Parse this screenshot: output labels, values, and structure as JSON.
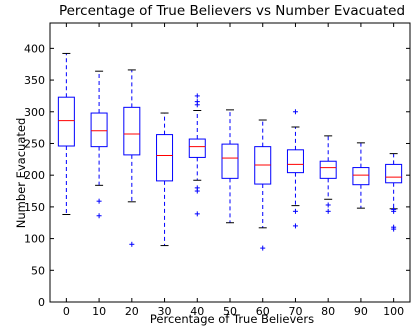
{
  "chart_data": {
    "type": "box",
    "title": "Percentage of True Believers vs Number Evacuated",
    "xlabel": "Percentage of True Believers",
    "ylabel": "Number Evacuated",
    "ylim": [
      0,
      440
    ],
    "yticks": [
      0,
      50,
      100,
      150,
      200,
      250,
      300,
      350,
      400
    ],
    "grid": false,
    "colors": {
      "box": "#0000ff",
      "median": "#ff0000",
      "whisker": "#0000ff",
      "cap": "#000000",
      "flier": "#0000ff"
    },
    "categories": [
      "0",
      "10",
      "20",
      "30",
      "40",
      "50",
      "60",
      "70",
      "80",
      "90",
      "100"
    ],
    "boxes": [
      {
        "label": "0",
        "whislo": 138,
        "q1": 246,
        "med": 286,
        "q3": 323,
        "whishi": 392,
        "fliers": []
      },
      {
        "label": "10",
        "whislo": 184,
        "q1": 245,
        "med": 270,
        "q3": 298,
        "whishi": 364,
        "fliers": [
          159,
          136
        ]
      },
      {
        "label": "20",
        "whislo": 158,
        "q1": 232,
        "med": 265,
        "q3": 307,
        "whishi": 366,
        "fliers": [
          91
        ]
      },
      {
        "label": "30",
        "whislo": 89,
        "q1": 191,
        "med": 231,
        "q3": 264,
        "whishi": 298,
        "fliers": []
      },
      {
        "label": "40",
        "whislo": 192,
        "q1": 228,
        "med": 245,
        "q3": 257,
        "whishi": 302,
        "fliers": [
          325,
          316,
          311,
          180,
          175,
          139
        ]
      },
      {
        "label": "50",
        "whislo": 125,
        "q1": 195,
        "med": 227,
        "q3": 249,
        "whishi": 303,
        "fliers": []
      },
      {
        "label": "60",
        "whislo": 117,
        "q1": 186,
        "med": 216,
        "q3": 245,
        "whishi": 287,
        "fliers": [
          85
        ]
      },
      {
        "label": "70",
        "whislo": 152,
        "q1": 204,
        "med": 217,
        "q3": 240,
        "whishi": 276,
        "fliers": [
          300,
          143,
          120
        ]
      },
      {
        "label": "80",
        "whislo": 162,
        "q1": 195,
        "med": 212,
        "q3": 222,
        "whishi": 262,
        "fliers": [
          153,
          143
        ]
      },
      {
        "label": "90",
        "whislo": 148,
        "q1": 185,
        "med": 200,
        "q3": 212,
        "whishi": 251,
        "fliers": []
      },
      {
        "label": "100",
        "whislo": 147,
        "q1": 188,
        "med": 197,
        "q3": 217,
        "whishi": 234,
        "fliers": [
          146,
          143,
          118,
          115
        ]
      }
    ]
  }
}
